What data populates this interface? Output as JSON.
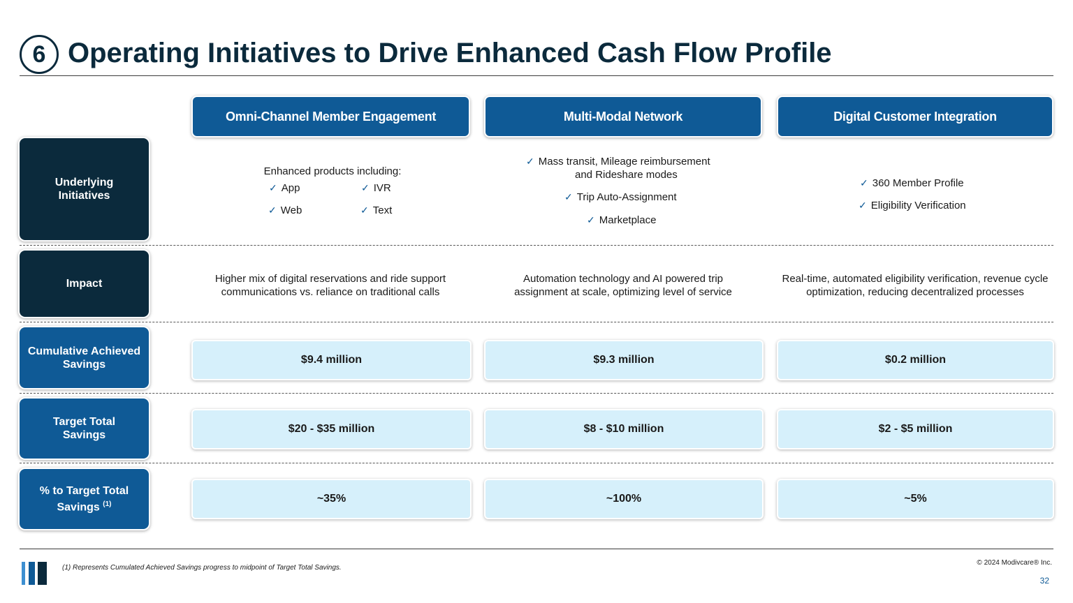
{
  "title": {
    "number": "6",
    "text": "Operating Initiatives to Drive Enhanced Cash Flow Profile"
  },
  "columns": [
    {
      "header": "Omni-Channel Member Engagement"
    },
    {
      "header": "Multi-Modal Network"
    },
    {
      "header": "Digital Customer Integration"
    }
  ],
  "rows": {
    "underlying": {
      "label": "Underlying Initiatives"
    },
    "impact": {
      "label": "Impact"
    },
    "cumulative": {
      "label": "Cumulative Achieved Savings"
    },
    "target": {
      "label": "Target Total Savings"
    },
    "pct": {
      "label": "% to Target Total Savings",
      "superscript": "(1)"
    }
  },
  "underlying_initiatives": {
    "col1": {
      "intro": "Enhanced products including:",
      "items": [
        "App",
        "IVR",
        "Web",
        "Text"
      ]
    },
    "col2": {
      "items": [
        "Mass transit, Mileage reimbursement",
        "and Rideshare modes",
        "Trip Auto-Assignment",
        "Marketplace"
      ]
    },
    "col3": {
      "items": [
        "360 Member Profile",
        "Eligibility Verification"
      ]
    }
  },
  "impact": [
    "Higher mix of digital reservations and ride support communications vs. reliance on traditional calls",
    "Automation technology and AI powered trip assignment at scale, optimizing level of service",
    "Real-time, automated eligibility verification, revenue cycle optimization, reducing decentralized processes"
  ],
  "cumulative_savings": [
    "$9.4 million",
    "$9.3 million",
    "$0.2 million"
  ],
  "target_savings": [
    "$20 - $35 million",
    "$8 - $10 million",
    "$2 - $5 million"
  ],
  "pct_to_target": [
    "~35%",
    "~100%",
    "~5%"
  ],
  "footer": {
    "footnote": "(1) Represents Cumulated Achieved Savings progress to midpoint of Target Total Savings.",
    "copyright": "© 2024 Modivcare® Inc.",
    "page_number": "32"
  },
  "colors": {
    "navy": "#0b2a3c",
    "blue": "#0f5a96",
    "light_blue": "#d6f0fb",
    "check": "#0f5a96"
  },
  "icons": {
    "check": "✓",
    "logo": "company-logo-bars"
  }
}
